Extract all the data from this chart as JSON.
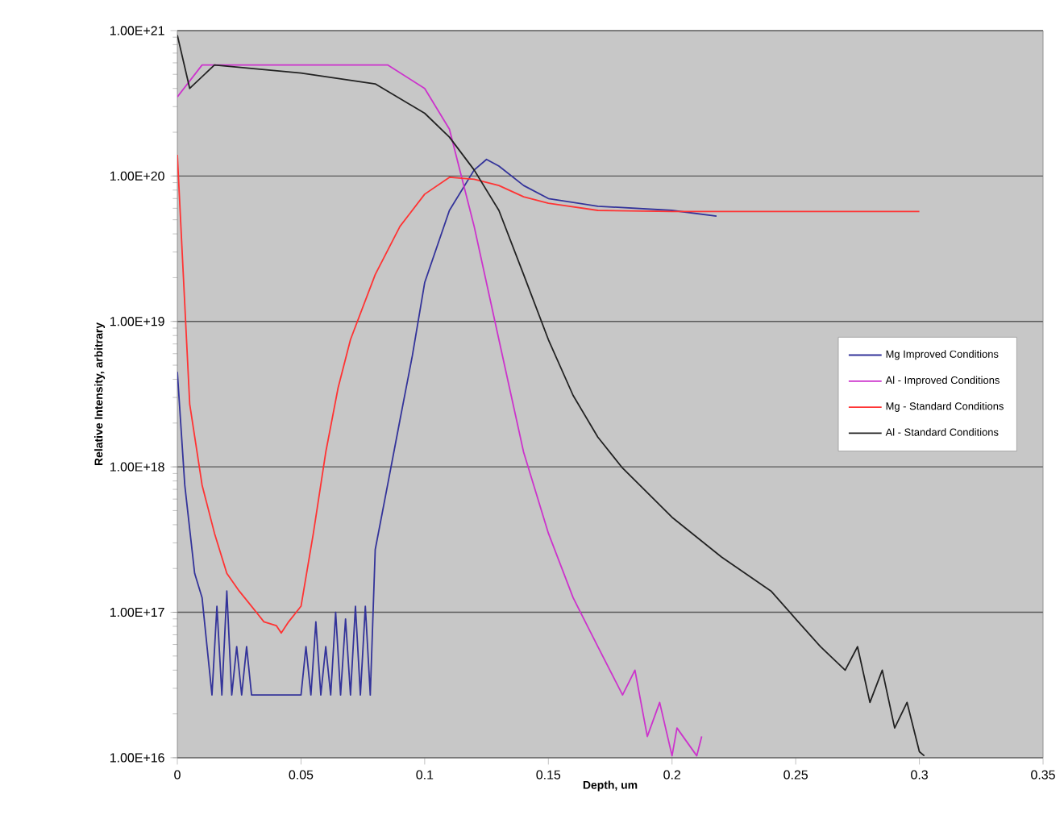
{
  "chart_data": {
    "type": "line",
    "xlabel": "Depth, um",
    "ylabel": "Relative Intensity, arbitrary",
    "log": "y",
    "grid": "y",
    "legend": "right",
    "marker": "none",
    "line_style": "solid",
    "xlim": [
      0,
      0.35
    ],
    "xticks": [
      0,
      0.05,
      0.1,
      0.15,
      0.2,
      0.25,
      0.3,
      0.35
    ],
    "ylim": [
      1e+16,
      1e+21
    ],
    "yticks": [
      {
        "value": 1e+16,
        "label": "1.00E+16"
      },
      {
        "value": 1e+17,
        "label": "1.00E+17"
      },
      {
        "value": 1e+18,
        "label": "1.00E+18"
      },
      {
        "value": 1e+19,
        "label": "1.00E+19"
      },
      {
        "value": 1e+20,
        "label": "1.00E+20"
      },
      {
        "value": 1e+21,
        "label": "1.00E+21"
      }
    ],
    "series": [
      {
        "name": "Mg Improved Conditions",
        "color": "#33339a",
        "x": [
          0,
          0.003,
          0.007,
          0.01,
          0.012,
          0.014,
          0.016,
          0.018,
          0.02,
          0.022,
          0.024,
          0.026,
          0.028,
          0.03,
          0.04,
          0.05,
          0.052,
          0.054,
          0.056,
          0.058,
          0.06,
          0.062,
          0.064,
          0.066,
          0.068,
          0.07,
          0.072,
          0.074,
          0.076,
          0.078,
          0.08,
          0.085,
          0.09,
          0.095,
          0.1,
          0.11,
          0.12,
          0.125,
          0.13,
          0.14,
          0.15,
          0.17,
          0.2,
          0.218
        ],
        "values": [
          4.5e+18,
          7.5e+17,
          1.85e+17,
          1.26e+17,
          5.8e+16,
          2.7e+16,
          1.1e+17,
          2.7e+16,
          1.4e+17,
          2.7e+16,
          5.8e+16,
          2.7e+16,
          5.8e+16,
          2.7e+16,
          2.7e+16,
          2.7e+16,
          5.8e+16,
          2.7e+16,
          8.6e+16,
          2.7e+16,
          5.8e+16,
          2.7e+16,
          1e+17,
          2.7e+16,
          9e+16,
          2.7e+16,
          1.1e+17,
          2.7e+16,
          1.1e+17,
          2.7e+16,
          2.7e+17,
          7.5e+17,
          2.1e+18,
          5.8e+18,
          1.85e+19,
          5.8e+19,
          1.1e+20,
          1.3e+20,
          1.17e+20,
          8.6e+19,
          7e+19,
          6.2e+19,
          5.8e+19,
          5.3e+19
        ]
      },
      {
        "name": "Al - Improved Conditions",
        "color": "#cc33cc",
        "x": [
          0,
          0.01,
          0.03,
          0.05,
          0.07,
          0.085,
          0.1,
          0.11,
          0.12,
          0.13,
          0.14,
          0.15,
          0.16,
          0.17,
          0.18,
          0.185,
          0.19,
          0.195,
          0.2,
          0.202,
          0.21,
          0.212
        ],
        "values": [
          3.5e+20,
          5.8e+20,
          5.8e+20,
          5.8e+20,
          5.8e+20,
          5.8e+20,
          4e+20,
          2.1e+20,
          4.5e+19,
          7.5e+18,
          1.26e+18,
          3.5e+17,
          1.26e+17,
          5.8e+16,
          2.7e+16,
          4e+16,
          1.4e+16,
          2.4e+16,
          1.03e+16,
          1.6e+16,
          1.03e+16,
          1.4e+16
        ]
      },
      {
        "name": "Mg - Standard Conditions",
        "color": "#ff3333",
        "x": [
          0,
          0.005,
          0.01,
          0.015,
          0.02,
          0.025,
          0.03,
          0.035,
          0.04,
          0.042,
          0.045,
          0.05,
          0.055,
          0.06,
          0.065,
          0.07,
          0.08,
          0.09,
          0.1,
          0.11,
          0.12,
          0.13,
          0.14,
          0.15,
          0.17,
          0.2,
          0.25,
          0.3
        ],
        "values": [
          1.4e+20,
          2.7e+18,
          7.5e+17,
          3.5e+17,
          1.85e+17,
          1.4e+17,
          1.1e+17,
          8.6e+16,
          8.1e+16,
          7.2e+16,
          8.6e+16,
          1.1e+17,
          3.5e+17,
          1.26e+18,
          3.5e+18,
          7.5e+18,
          2.1e+19,
          4.5e+19,
          7.5e+19,
          9.8e+19,
          9.5e+19,
          8.6e+19,
          7.2e+19,
          6.5e+19,
          5.8e+19,
          5.7e+19,
          5.7e+19,
          5.7e+19
        ]
      },
      {
        "name": "Al - Standard Conditions",
        "color": "#222222",
        "x": [
          0,
          0.005,
          0.015,
          0.05,
          0.08,
          0.1,
          0.11,
          0.12,
          0.13,
          0.14,
          0.15,
          0.16,
          0.17,
          0.18,
          0.2,
          0.22,
          0.24,
          0.25,
          0.26,
          0.27,
          0.275,
          0.28,
          0.285,
          0.29,
          0.295,
          0.3,
          0.302
        ],
        "values": [
          9.3e+20,
          4e+20,
          5.8e+20,
          5.1e+20,
          4.3e+20,
          2.7e+20,
          1.85e+20,
          1.1e+20,
          5.8e+19,
          2.1e+19,
          7.5e+18,
          3.1e+18,
          1.6e+18,
          9.8e+17,
          4.5e+17,
          2.4e+17,
          1.4e+17,
          9e+16,
          5.8e+16,
          4e+16,
          5.8e+16,
          2.4e+16,
          4e+16,
          1.6e+16,
          2.4e+16,
          1.1e+16,
          1.03e+16
        ]
      }
    ]
  }
}
